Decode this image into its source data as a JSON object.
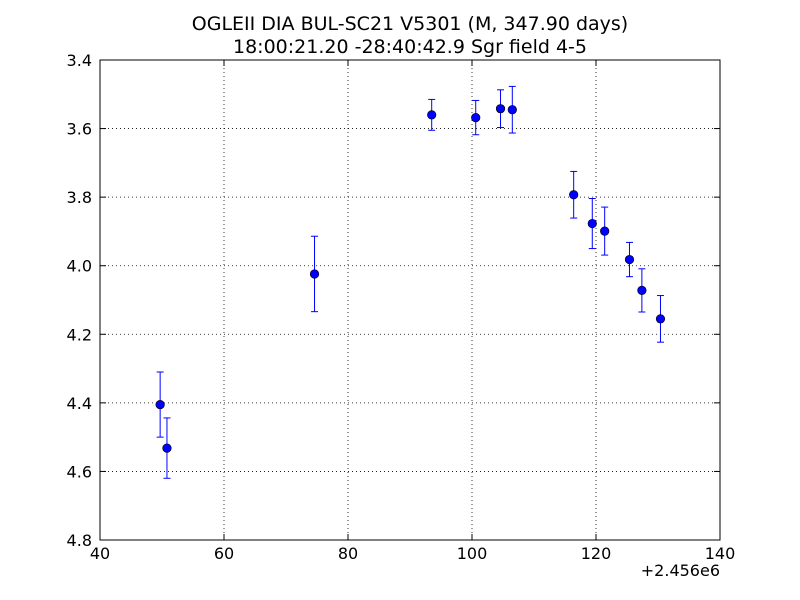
{
  "chart_data": {
    "type": "scatter",
    "title": "OGLEII DIA BUL-SC21 V5301 (M, 347.90 days)",
    "subtitle": "18:00:21.20 -28:40:42.9 Sgr field 4-5",
    "xlabel": "",
    "ylabel": "",
    "x_offset_label": "+2.456e6",
    "xlim": [
      40,
      140
    ],
    "ylim": [
      3.4,
      4.8
    ],
    "y_inverted": true,
    "grid": true,
    "grid_style": "dotted",
    "x_ticks": [
      "40",
      "60",
      "80",
      "100",
      "120",
      "140"
    ],
    "y_ticks": [
      "3.4",
      "3.6",
      "3.8",
      "4.0",
      "4.2",
      "4.4",
      "4.6",
      "4.8"
    ],
    "marker_color": "#0000ff",
    "series": [
      {
        "points": [
          {
            "x": 49.7,
            "y": 4.405,
            "err": 0.095
          },
          {
            "x": 50.8,
            "y": 4.532,
            "err": 0.088
          },
          {
            "x": 74.6,
            "y": 4.024,
            "err": 0.11
          },
          {
            "x": 93.5,
            "y": 3.56,
            "err": 0.045
          },
          {
            "x": 100.6,
            "y": 3.568,
            "err": 0.05
          },
          {
            "x": 104.6,
            "y": 3.542,
            "err": 0.055
          },
          {
            "x": 106.5,
            "y": 3.545,
            "err": 0.068
          },
          {
            "x": 116.4,
            "y": 3.793,
            "err": 0.068
          },
          {
            "x": 119.4,
            "y": 3.877,
            "err": 0.073
          },
          {
            "x": 121.4,
            "y": 3.899,
            "err": 0.07
          },
          {
            "x": 125.4,
            "y": 3.982,
            "err": 0.05
          },
          {
            "x": 127.4,
            "y": 4.072,
            "err": 0.063
          },
          {
            "x": 130.4,
            "y": 4.155,
            "err": 0.068
          }
        ]
      }
    ]
  }
}
